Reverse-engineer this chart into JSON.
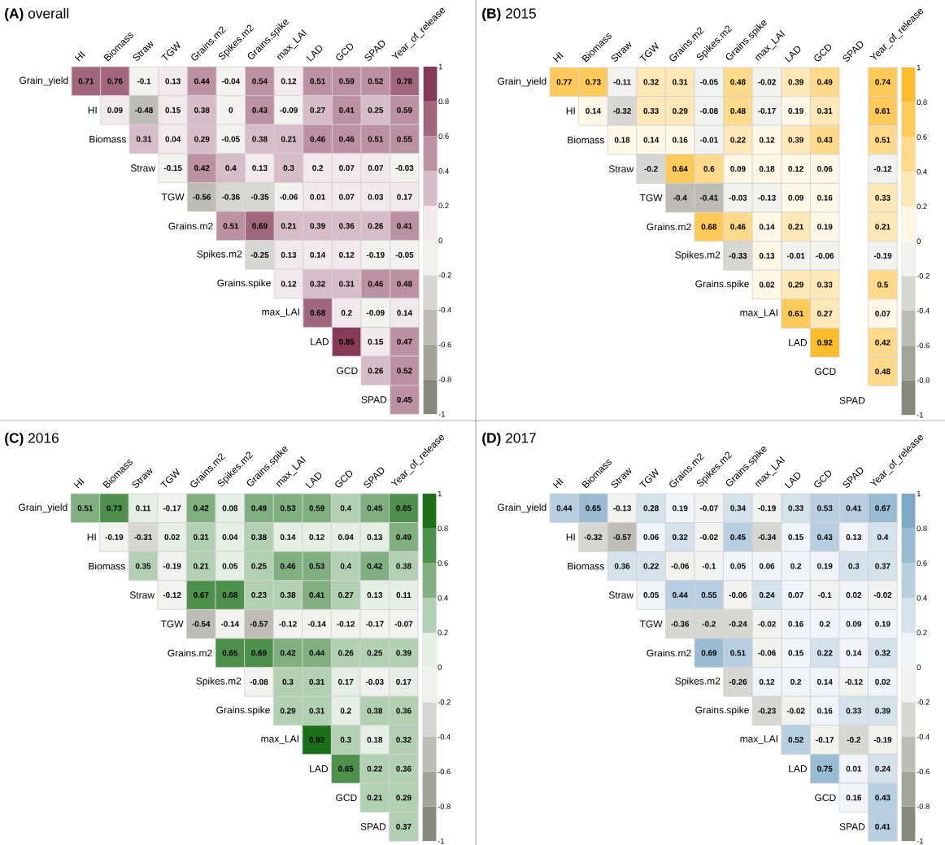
{
  "chart_data": [
    {
      "type": "heatmap",
      "title": "**(A)** overall",
      "categories": [
        "HI",
        "Biomass",
        "Straw",
        "TGW",
        "Grains.m2",
        "Spikes.m2",
        "Grains.spike",
        "max_LAI",
        "LAD",
        "GCD",
        "SPAD",
        "Year_of_release"
      ],
      "y_categories": [
        "Grain_yield",
        "HI",
        "Biomass",
        "Straw",
        "TGW",
        "Grains.m2",
        "Spikes.m2",
        "Grains.spike",
        "max_LAI",
        "LAD",
        "GCD",
        "SPAD"
      ],
      "cells": [
        [
          0.71,
          0.76,
          -0.1,
          0.13,
          0.44,
          -0.04,
          0.54,
          0.12,
          0.51,
          0.59,
          0.52,
          0.78
        ],
        [
          null,
          0.09,
          -0.48,
          0.15,
          0.38,
          0,
          0.43,
          -0.09,
          0.27,
          0.41,
          0.25,
          0.59
        ],
        [
          null,
          null,
          0.31,
          0.04,
          0.29,
          -0.05,
          0.38,
          0.21,
          0.46,
          0.46,
          0.51,
          0.55
        ],
        [
          null,
          null,
          null,
          -0.15,
          0.42,
          0.4,
          0.13,
          0.3,
          0.2,
          0.07,
          0.07,
          -0.03
        ],
        [
          null,
          null,
          null,
          null,
          -0.56,
          -0.36,
          -0.35,
          -0.06,
          0.01,
          0.07,
          0.03,
          0.17
        ],
        [
          null,
          null,
          null,
          null,
          null,
          0.51,
          0.69,
          0.21,
          0.39,
          0.36,
          0.26,
          0.41
        ],
        [
          null,
          null,
          null,
          null,
          null,
          null,
          -0.25,
          0.13,
          0.14,
          0.12,
          -0.19,
          -0.05
        ],
        [
          null,
          null,
          null,
          null,
          null,
          null,
          null,
          0.12,
          0.32,
          0.31,
          0.46,
          0.48
        ],
        [
          null,
          null,
          null,
          null,
          null,
          null,
          null,
          null,
          0.68,
          0.2,
          -0.09,
          0.14
        ],
        [
          null,
          null,
          null,
          null,
          null,
          null,
          null,
          null,
          null,
          0.85,
          0.15,
          0.47
        ],
        [
          null,
          null,
          null,
          null,
          null,
          null,
          null,
          null,
          null,
          null,
          0.26,
          0.52
        ],
        [
          null,
          null,
          null,
          null,
          null,
          null,
          null,
          null,
          null,
          null,
          null,
          0.45
        ]
      ],
      "data_labels": true,
      "clim": [
        -1,
        1
      ],
      "cticks": [
        -1,
        -0.8,
        -0.6,
        -0.4,
        -0.2,
        0,
        0.2,
        0.4,
        0.6,
        0.8,
        1
      ],
      "colors": [
        "#7b7b6c",
        "#ffffff",
        "#7a2445"
      ]
    },
    {
      "type": "heatmap",
      "title": "**(B)** 2015",
      "categories": [
        "HI",
        "Biomass",
        "Straw",
        "TGW",
        "Grains.m2",
        "Spikes.m2",
        "Grains.spike",
        "max_LAI",
        "LAD",
        "GCD",
        "SPAD",
        "Year_of_release"
      ],
      "y_categories": [
        "Grain_yield",
        "HI",
        "Biomass",
        "Straw",
        "TGW",
        "Grains.m2",
        "Spikes.m2",
        "Grains.spike",
        "max_LAI",
        "LAD",
        "GCD",
        "SPAD"
      ],
      "cells": [
        [
          0.77,
          0.73,
          -0.11,
          0.32,
          0.31,
          -0.05,
          0.48,
          -0.02,
          0.39,
          0.49,
          null,
          0.74
        ],
        [
          null,
          0.14,
          -0.32,
          0.33,
          0.29,
          -0.08,
          0.48,
          -0.17,
          0.19,
          0.31,
          null,
          0.61
        ],
        [
          null,
          null,
          0.18,
          0.14,
          0.16,
          -0.01,
          0.22,
          0.12,
          0.39,
          0.43,
          null,
          0.51
        ],
        [
          null,
          null,
          null,
          -0.2,
          0.64,
          0.6,
          0.09,
          0.18,
          0.12,
          0.06,
          null,
          -0.12
        ],
        [
          null,
          null,
          null,
          null,
          -0.4,
          -0.41,
          -0.03,
          -0.13,
          0.09,
          0.16,
          null,
          0.33
        ],
        [
          null,
          null,
          null,
          null,
          null,
          0.68,
          0.46,
          0.14,
          0.21,
          0.19,
          null,
          0.21
        ],
        [
          null,
          null,
          null,
          null,
          null,
          null,
          -0.33,
          0.13,
          -0.01,
          -0.06,
          null,
          -0.19
        ],
        [
          null,
          null,
          null,
          null,
          null,
          null,
          null,
          0.02,
          0.29,
          0.33,
          null,
          0.5
        ],
        [
          null,
          null,
          null,
          null,
          null,
          null,
          null,
          null,
          0.61,
          0.27,
          null,
          0.07
        ],
        [
          null,
          null,
          null,
          null,
          null,
          null,
          null,
          null,
          null,
          0.92,
          null,
          0.42
        ],
        [
          null,
          null,
          null,
          null,
          null,
          null,
          null,
          null,
          null,
          null,
          null,
          0.48
        ],
        [
          null,
          null,
          null,
          null,
          null,
          null,
          null,
          null,
          null,
          null,
          null,
          null
        ]
      ],
      "data_labels": true,
      "clim": [
        -1,
        1
      ],
      "cticks": [
        -1,
        -0.8,
        -0.6,
        -0.4,
        -0.2,
        0,
        0.2,
        0.4,
        0.6,
        0.8,
        1
      ],
      "colors": [
        "#7b7b6c",
        "#ffffff",
        "#fdb414"
      ]
    },
    {
      "type": "heatmap",
      "title": "**(C)** 2016",
      "categories": [
        "HI",
        "Biomass",
        "Straw",
        "TGW",
        "Grains.m2",
        "Spikes.m2",
        "Grains.spike",
        "max_LAI",
        "LAD",
        "GCD",
        "SPAD",
        "Year_of_release"
      ],
      "y_categories": [
        "Grain_yield",
        "HI",
        "Biomass",
        "Straw",
        "TGW",
        "Grains.m2",
        "Spikes.m2",
        "Grains.spike",
        "max_LAI",
        "LAD",
        "GCD",
        "SPAD"
      ],
      "cells": [
        [
          0.51,
          0.73,
          0.11,
          -0.17,
          0.42,
          0.08,
          0.49,
          0.53,
          0.59,
          0.4,
          0.45,
          0.65
        ],
        [
          null,
          -0.19,
          -0.31,
          0.02,
          0.31,
          0.04,
          0.38,
          0.14,
          0.12,
          0.04,
          0.13,
          0.49
        ],
        [
          null,
          null,
          0.35,
          -0.19,
          0.21,
          0.05,
          0.25,
          0.46,
          0.53,
          0.4,
          0.42,
          0.38
        ],
        [
          null,
          null,
          null,
          -0.12,
          0.67,
          0.68,
          0.23,
          0.38,
          0.41,
          0.27,
          0.13,
          0.11
        ],
        [
          null,
          null,
          null,
          null,
          -0.54,
          -0.14,
          -0.57,
          -0.12,
          -0.14,
          -0.12,
          -0.17,
          -0.07
        ],
        [
          null,
          null,
          null,
          null,
          null,
          0.65,
          0.69,
          0.42,
          0.44,
          0.26,
          0.25,
          0.39
        ],
        [
          null,
          null,
          null,
          null,
          null,
          null,
          -0.08,
          0.3,
          0.31,
          0.17,
          -0.03,
          0.17
        ],
        [
          null,
          null,
          null,
          null,
          null,
          null,
          null,
          0.29,
          0.31,
          0.2,
          0.38,
          0.36
        ],
        [
          null,
          null,
          null,
          null,
          null,
          null,
          null,
          null,
          0.92,
          0.3,
          0.18,
          0.32
        ],
        [
          null,
          null,
          null,
          null,
          null,
          null,
          null,
          null,
          null,
          0.65,
          0.22,
          0.36
        ],
        [
          null,
          null,
          null,
          null,
          null,
          null,
          null,
          null,
          null,
          null,
          0.21,
          0.29
        ],
        [
          null,
          null,
          null,
          null,
          null,
          null,
          null,
          null,
          null,
          null,
          null,
          0.37
        ]
      ],
      "data_labels": true,
      "clim": [
        -1,
        1
      ],
      "cticks": [
        -1,
        -0.8,
        -0.6,
        -0.4,
        -0.2,
        0,
        0.2,
        0.4,
        0.6,
        0.8,
        1
      ],
      "colors": [
        "#7b7b6c",
        "#ffffff",
        "#006100"
      ]
    },
    {
      "type": "heatmap",
      "title": "**(D)** 2017",
      "categories": [
        "HI",
        "Biomass",
        "Straw",
        "TGW",
        "Grains.m2",
        "Spikes.m2",
        "Grains.spike",
        "max_LAI",
        "LAD",
        "GCD",
        "SPAD",
        "Year_of_release"
      ],
      "y_categories": [
        "Grain_yield",
        "HI",
        "Biomass",
        "Straw",
        "TGW",
        "Grains.m2",
        "Spikes.m2",
        "Grains.spike",
        "max_LAI",
        "LAD",
        "GCD",
        "SPAD"
      ],
      "cells": [
        [
          0.44,
          0.65,
          -0.13,
          0.28,
          0.19,
          -0.07,
          0.34,
          -0.19,
          0.33,
          0.53,
          0.41,
          0.67
        ],
        [
          null,
          -0.32,
          -0.57,
          0.06,
          0.32,
          -0.02,
          0.45,
          -0.34,
          0.15,
          0.43,
          0.13,
          0.4
        ],
        [
          null,
          null,
          0.36,
          0.22,
          -0.06,
          -0.1,
          0.05,
          0.06,
          0.2,
          0.19,
          0.3,
          0.37
        ],
        [
          null,
          null,
          null,
          0.05,
          0.44,
          0.55,
          -0.06,
          0.24,
          0.07,
          -0.1,
          0.02,
          -0.02
        ],
        [
          null,
          null,
          null,
          null,
          -0.36,
          -0.2,
          -0.24,
          -0.02,
          0.16,
          0.2,
          0.09,
          0.19
        ],
        [
          null,
          null,
          null,
          null,
          null,
          0.69,
          0.51,
          -0.06,
          0.15,
          0.22,
          0.14,
          0.32
        ],
        [
          null,
          null,
          null,
          null,
          null,
          null,
          -0.26,
          0.12,
          0.2,
          0.14,
          -0.12,
          0.02
        ],
        [
          null,
          null,
          null,
          null,
          null,
          null,
          null,
          -0.23,
          -0.02,
          0.16,
          0.33,
          0.39
        ],
        [
          null,
          null,
          null,
          null,
          null,
          null,
          null,
          null,
          0.52,
          -0.17,
          -0.2,
          -0.19
        ],
        [
          null,
          null,
          null,
          null,
          null,
          null,
          null,
          null,
          null,
          0.75,
          0.01,
          0.24
        ],
        [
          null,
          null,
          null,
          null,
          null,
          null,
          null,
          null,
          null,
          null,
          0.16,
          0.43
        ],
        [
          null,
          null,
          null,
          null,
          null,
          null,
          null,
          null,
          null,
          null,
          null,
          0.41
        ]
      ],
      "data_labels": true,
      "clim": [
        -1,
        1
      ],
      "cticks": [
        -1,
        -0.8,
        -0.6,
        -0.4,
        -0.2,
        0,
        0.2,
        0.4,
        0.6,
        0.8,
        1
      ],
      "colors": [
        "#7b7b6c",
        "#ffffff",
        "#6f9fc0"
      ]
    }
  ]
}
